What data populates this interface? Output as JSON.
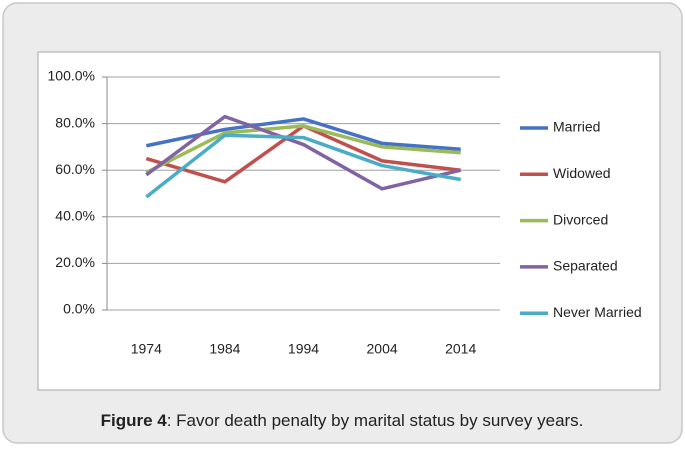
{
  "chart_data": {
    "type": "line",
    "categories": [
      "1974",
      "1984",
      "1994",
      "2004",
      "2014"
    ],
    "series": [
      {
        "name": "Married",
        "color": "#4472c4",
        "values": [
          70.5,
          77.5,
          82,
          71.5,
          69
        ]
      },
      {
        "name": "Widowed",
        "color": "#c0504d",
        "values": [
          65,
          55,
          79,
          64,
          60
        ]
      },
      {
        "name": "Divorced",
        "color": "#9bbb59",
        "values": [
          59,
          76,
          79,
          70,
          67.5
        ]
      },
      {
        "name": "Separated",
        "color": "#8064a2",
        "values": [
          58,
          83,
          71,
          52,
          60
        ]
      },
      {
        "name": "Never Married",
        "color": "#4bacc6",
        "values": [
          48.5,
          75,
          74,
          62,
          56
        ]
      }
    ],
    "ylim": [
      0,
      100
    ],
    "yticks": [
      {
        "value": 0,
        "label": "0.0%"
      },
      {
        "value": 20,
        "label": "20.0%"
      },
      {
        "value": 40,
        "label": "40.0%"
      },
      {
        "value": 60,
        "label": "60.0%"
      },
      {
        "value": 80,
        "label": "80.0%"
      },
      {
        "value": 100,
        "label": "100.0%"
      }
    ],
    "grid": true,
    "legend": "right"
  },
  "caption": {
    "label": "Figure 4",
    "text": ": Favor death penalty by marital status by survey years."
  }
}
